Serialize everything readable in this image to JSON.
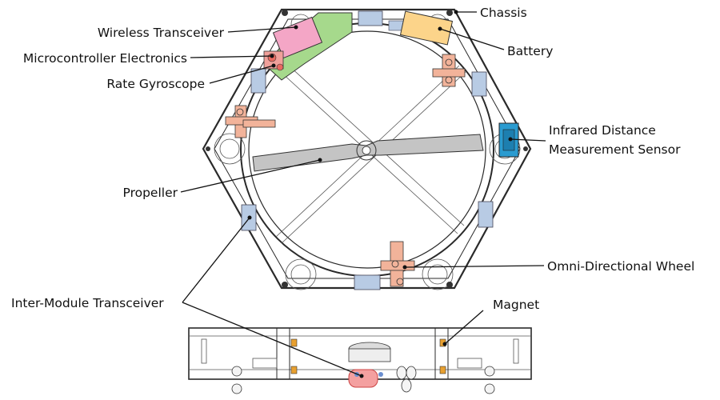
{
  "labels": {
    "chassis": "Chassis",
    "wireless_transceiver": "Wireless Transceiver",
    "battery": "Battery",
    "microcontroller": "Microcontroller Electronics",
    "rate_gyroscope": "Rate Gyroscope",
    "infrared_line1": "Infrared Distance",
    "infrared_line2": "Measurement Sensor",
    "propeller": "Propeller",
    "omni_wheel": "Omni-Directional Wheel",
    "inter_module_transceiver": "Inter-Module Transceiver",
    "magnet": "Magnet"
  },
  "colors": {
    "wireless_transceiver": "#f4a6c6",
    "battery": "#fcd48a",
    "microcontroller": "#a6d98c",
    "rate_gyroscope": "#f0a09a",
    "infrared_sensor": "#2a9bd0",
    "propeller": "#c4c4c4",
    "omni_wheel": "#f2b39a",
    "inter_module_transceiver": "#b8cbe4",
    "magnet": "#e8a030",
    "highlight": "#f4a0a0"
  }
}
